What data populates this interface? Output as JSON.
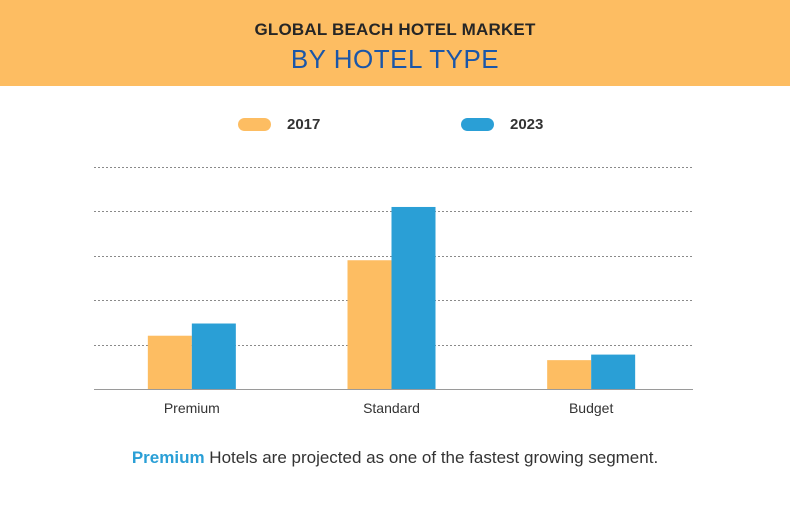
{
  "header": {
    "title_line1": "GLOBAL BEACH HOTEL MARKET",
    "title_line2": "BY HOTEL TYPE"
  },
  "colors": {
    "header_bg": "#fdbd62",
    "series_2017": "#fdbd62",
    "series_2023": "#2a9fd6",
    "title_accent": "#1a56a8"
  },
  "chart_data": {
    "type": "bar",
    "categories": [
      "Premium",
      "Standard",
      "Budget"
    ],
    "series": [
      {
        "name": "2017",
        "values": [
          24,
          58,
          13
        ]
      },
      {
        "name": "2023",
        "values": [
          29.5,
          82,
          15.5
        ]
      }
    ],
    "ylim": [
      0,
      100
    ],
    "gridlines": 5,
    "y_tick_labels_shown": false,
    "legend_position": "top",
    "grid": true
  },
  "footnote": {
    "highlight": "Premium",
    "rest": " Hotels are projected as one of the fastest growing segment."
  }
}
